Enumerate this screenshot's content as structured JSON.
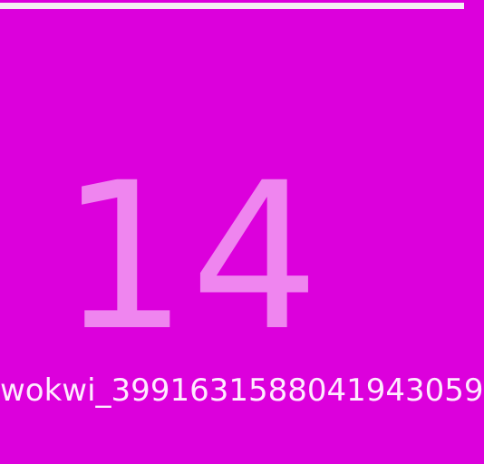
{
  "display": {
    "value": "14",
    "label": "wokwi_3991631588041943059"
  },
  "colors": {
    "background": "#dc00dc",
    "value_text": "#ef85ef",
    "label_text": "#ffeaff",
    "top_strip": "#f3f0f3"
  }
}
